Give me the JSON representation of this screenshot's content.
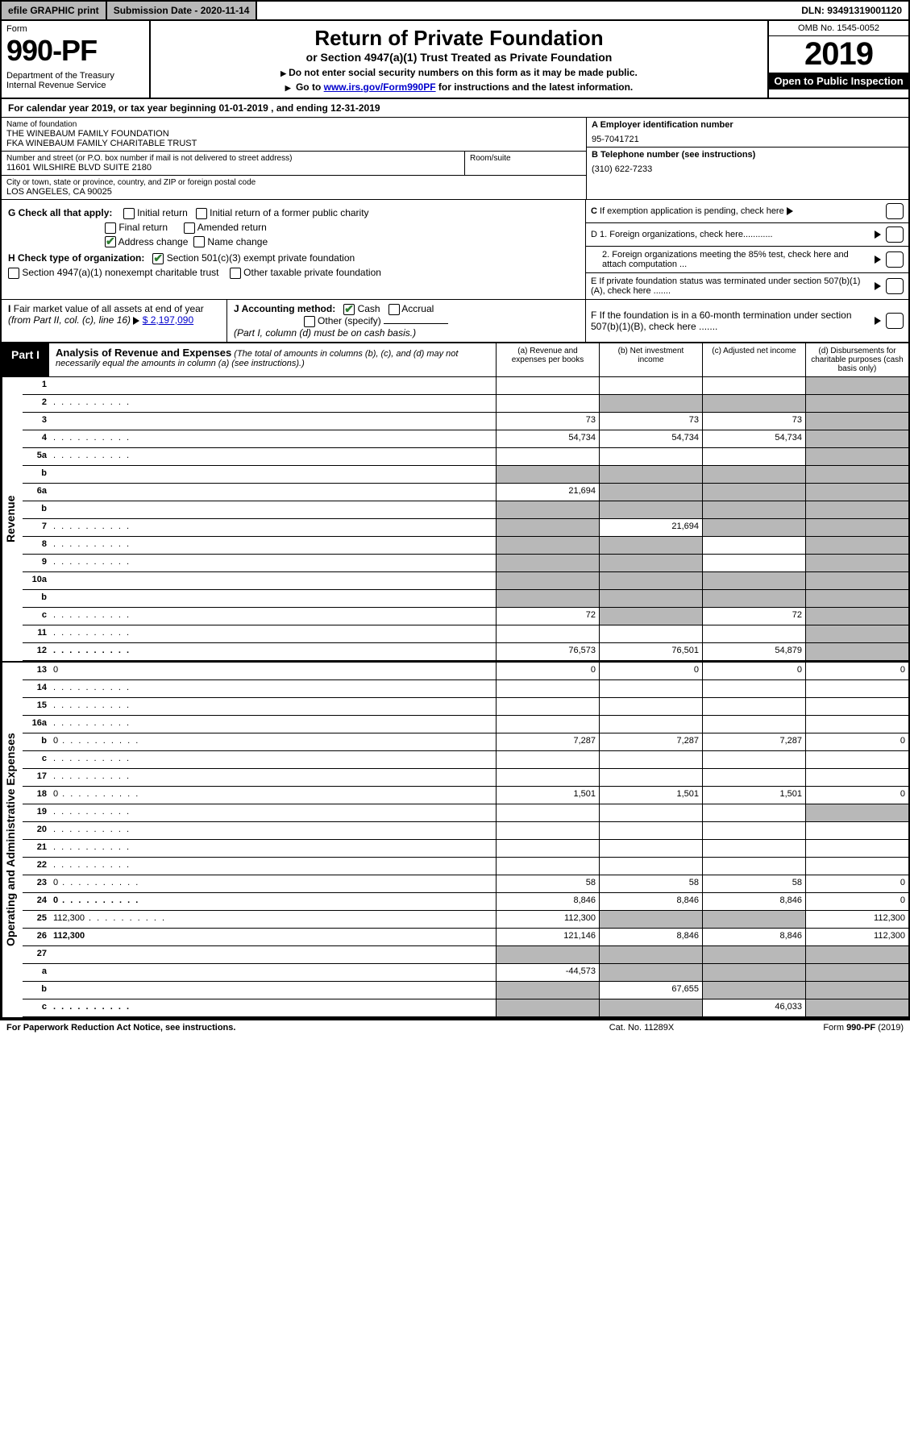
{
  "top": {
    "efile": "efile GRAPHIC print",
    "submission": "Submission Date - 2020-11-14",
    "dln": "DLN: 93491319001120"
  },
  "header": {
    "form_word": "Form",
    "form_num": "990-PF",
    "dept": "Department of the Treasury\nInternal Revenue Service",
    "title": "Return of Private Foundation",
    "subtitle": "or Section 4947(a)(1) Trust Treated as Private Foundation",
    "note1": "Do not enter social security numbers on this form as it may be made public.",
    "note2_pre": "Go to ",
    "note2_link": "www.irs.gov/Form990PF",
    "note2_post": " for instructions and the latest information.",
    "omb": "OMB No. 1545-0052",
    "year": "2019",
    "open": "Open to Public Inspection"
  },
  "cal": "For calendar year 2019, or tax year beginning 01-01-2019                         , and ending 12-31-2019",
  "entity": {
    "name_lbl": "Name of foundation",
    "name1": "THE WINEBAUM FAMILY FOUNDATION",
    "name2": "FKA WINEBAUM FAMILY CHARITABLE TRUST",
    "addr_lbl": "Number and street (or P.O. box number if mail is not delivered to street address)",
    "addr": "11601 WILSHIRE BLVD SUITE 2180",
    "room_lbl": "Room/suite",
    "city_lbl": "City or town, state or province, country, and ZIP or foreign postal code",
    "city": "LOS ANGELES, CA  90025",
    "a_lbl": "A Employer identification number",
    "a_val": "95-7041721",
    "b_lbl": "B Telephone number (see instructions)",
    "b_val": "(310) 622-7233",
    "c_lbl": "C If exemption application is pending, check here",
    "d1": "D 1. Foreign organizations, check here............",
    "d2": "2. Foreign organizations meeting the 85% test, check here and attach computation ...",
    "e": "E  If private foundation status was terminated under section 507(b)(1)(A), check here .......",
    "f": "F  If the foundation is in a 60-month termination under section 507(b)(1)(B), check here .......",
    "g_lbl": "G Check all that apply:",
    "g_opts": [
      "Initial return",
      "Initial return of a former public charity",
      "Final return",
      "Amended return",
      "Address change",
      "Name change"
    ],
    "h_lbl": "H Check type of organization:",
    "h_opts": [
      "Section 501(c)(3) exempt private foundation",
      "Section 4947(a)(1) nonexempt charitable trust",
      "Other taxable private foundation"
    ],
    "i_lbl": "I Fair market value of all assets at end of year (from Part II, col. (c), line 16)",
    "i_val": "$  2,197,090",
    "j_lbl": "J Accounting method:",
    "j_cash": "Cash",
    "j_accrual": "Accrual",
    "j_other": "Other (specify)",
    "j_note": "(Part I, column (d) must be on cash basis.)"
  },
  "part1": {
    "lbl": "Part I",
    "ttl": "Analysis of Revenue and Expenses",
    "note": "(The total of amounts in columns (b), (c), and (d) may not necessarily equal the amounts in column (a) (see instructions).)",
    "cols": {
      "a": "(a)    Revenue and expenses per books",
      "b": "(b)   Net investment income",
      "c": "(c)   Adjusted net income",
      "d": "(d)   Disbursements for charitable purposes (cash basis only)"
    }
  },
  "side": {
    "rev": "Revenue",
    "exp": "Operating and Administrative Expenses"
  },
  "rows": [
    {
      "n": "1",
      "d": "",
      "a": "",
      "b": "",
      "c": "",
      "dgrey": true
    },
    {
      "n": "2",
      "d": "",
      "dots": true,
      "a": "",
      "b": "",
      "c": "",
      "dgrey": true,
      "bgrey": true,
      "cgrey": true
    },
    {
      "n": "3",
      "d": "",
      "a": "73",
      "b": "73",
      "c": "73",
      "dgrey": true
    },
    {
      "n": "4",
      "d": "",
      "dots": true,
      "a": "54,734",
      "b": "54,734",
      "c": "54,734",
      "dgrey": true
    },
    {
      "n": "5a",
      "d": "",
      "dots": true,
      "a": "",
      "b": "",
      "c": "",
      "dgrey": true
    },
    {
      "n": "b",
      "d": "",
      "a": "",
      "b": "",
      "c": "",
      "agrey": true,
      "bgrey": true,
      "cgrey": true,
      "dgrey": true
    },
    {
      "n": "6a",
      "d": "",
      "a": "21,694",
      "b": "",
      "c": "",
      "bgrey": true,
      "cgrey": true,
      "dgrey": true
    },
    {
      "n": "b",
      "d": "",
      "a": "",
      "b": "",
      "c": "",
      "agrey": true,
      "bgrey": true,
      "cgrey": true,
      "dgrey": true
    },
    {
      "n": "7",
      "d": "",
      "dots": true,
      "a": "",
      "b": "21,694",
      "c": "",
      "agrey": true,
      "cgrey": true,
      "dgrey": true
    },
    {
      "n": "8",
      "d": "",
      "dots": true,
      "a": "",
      "b": "",
      "c": "",
      "agrey": true,
      "bgrey": true,
      "dgrey": true
    },
    {
      "n": "9",
      "d": "",
      "dots": true,
      "a": "",
      "b": "",
      "c": "",
      "agrey": true,
      "bgrey": true,
      "dgrey": true
    },
    {
      "n": "10a",
      "d": "",
      "a": "",
      "b": "",
      "c": "",
      "agrey": true,
      "bgrey": true,
      "cgrey": true,
      "dgrey": true
    },
    {
      "n": "b",
      "d": "",
      "a": "",
      "b": "",
      "c": "",
      "agrey": true,
      "bgrey": true,
      "cgrey": true,
      "dgrey": true
    },
    {
      "n": "c",
      "d": "",
      "dots": true,
      "a": "72",
      "b": "",
      "c": "72",
      "bgrey": true,
      "dgrey": true
    },
    {
      "n": "11",
      "d": "",
      "dots": true,
      "a": "",
      "b": "",
      "c": "",
      "dgrey": true
    },
    {
      "n": "12",
      "d": "",
      "bold": true,
      "dots": true,
      "a": "76,573",
      "b": "76,501",
      "c": "54,879",
      "dgrey": true
    }
  ],
  "exp_rows": [
    {
      "n": "13",
      "d": "0",
      "a": "0",
      "b": "0",
      "c": "0"
    },
    {
      "n": "14",
      "d": "",
      "dots": true,
      "a": "",
      "b": "",
      "c": ""
    },
    {
      "n": "15",
      "d": "",
      "dots": true,
      "a": "",
      "b": "",
      "c": ""
    },
    {
      "n": "16a",
      "d": "",
      "dots": true,
      "a": "",
      "b": "",
      "c": ""
    },
    {
      "n": "b",
      "d": "0",
      "dots": true,
      "a": "7,287",
      "b": "7,287",
      "c": "7,287"
    },
    {
      "n": "c",
      "d": "",
      "dots": true,
      "a": "",
      "b": "",
      "c": ""
    },
    {
      "n": "17",
      "d": "",
      "dots": true,
      "a": "",
      "b": "",
      "c": ""
    },
    {
      "n": "18",
      "d": "0",
      "dots": true,
      "a": "1,501",
      "b": "1,501",
      "c": "1,501"
    },
    {
      "n": "19",
      "d": "",
      "dots": true,
      "a": "",
      "b": "",
      "c": "",
      "dgrey": true
    },
    {
      "n": "20",
      "d": "",
      "dots": true,
      "a": "",
      "b": "",
      "c": ""
    },
    {
      "n": "21",
      "d": "",
      "dots": true,
      "a": "",
      "b": "",
      "c": ""
    },
    {
      "n": "22",
      "d": "",
      "dots": true,
      "a": "",
      "b": "",
      "c": ""
    },
    {
      "n": "23",
      "d": "0",
      "dots": true,
      "a": "58",
      "b": "58",
      "c": "58"
    },
    {
      "n": "24",
      "d": "0",
      "bold": true,
      "dots": true,
      "a": "8,846",
      "b": "8,846",
      "c": "8,846"
    },
    {
      "n": "25",
      "d": "112,300",
      "dots": true,
      "a": "112,300",
      "b": "",
      "c": "",
      "bgrey": true,
      "cgrey": true
    },
    {
      "n": "26",
      "d": "112,300",
      "bold": true,
      "a": "121,146",
      "b": "8,846",
      "c": "8,846"
    },
    {
      "n": "27",
      "d": "",
      "a": "",
      "b": "",
      "c": "",
      "agrey": true,
      "bgrey": true,
      "cgrey": true,
      "dgrey": true
    },
    {
      "n": "a",
      "d": "",
      "bold": true,
      "a": "-44,573",
      "b": "",
      "c": "",
      "bgrey": true,
      "cgrey": true,
      "dgrey": true
    },
    {
      "n": "b",
      "d": "",
      "bold": true,
      "a": "",
      "b": "67,655",
      "c": "",
      "agrey": true,
      "cgrey": true,
      "dgrey": true
    },
    {
      "n": "c",
      "d": "",
      "bold": true,
      "dots": true,
      "a": "",
      "b": "",
      "c": "46,033",
      "agrey": true,
      "bgrey": true,
      "dgrey": true
    }
  ],
  "footer": {
    "l": "For Paperwork Reduction Act Notice, see instructions.",
    "m": "Cat. No. 11289X",
    "r": "Form 990-PF (2019)"
  }
}
